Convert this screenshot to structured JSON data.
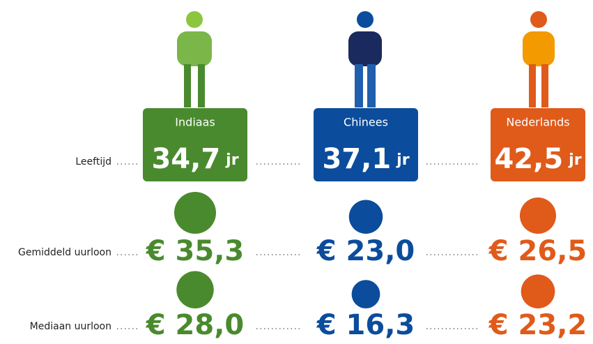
{
  "rows": [
    "Leeftijd",
    "Gemiddeld uurloon",
    "Mediaan uurloon"
  ],
  "age_unit": "jr",
  "groups": [
    {
      "name": "Indiaas",
      "color": "#4a8a2e",
      "age": {
        "value": 34.7,
        "label": "34,7"
      },
      "mean": {
        "value": 35.3,
        "label": "€ 35,3"
      },
      "median": {
        "value": 28.0,
        "label": "€ 28,0"
      }
    },
    {
      "name": "Chinees",
      "color": "#0b4c9c",
      "age": {
        "value": 37.1,
        "label": "37,1"
      },
      "mean": {
        "value": 23.0,
        "label": "€ 23,0"
      },
      "median": {
        "value": 16.3,
        "label": "€ 16,3"
      }
    },
    {
      "name": "Nederlands",
      "color": "#e05a1a",
      "age": {
        "value": 42.5,
        "label": "42,5"
      },
      "mean": {
        "value": 26.5,
        "label": "€ 26,5"
      },
      "median": {
        "value": 23.2,
        "label": "€ 23,2"
      }
    }
  ]
}
